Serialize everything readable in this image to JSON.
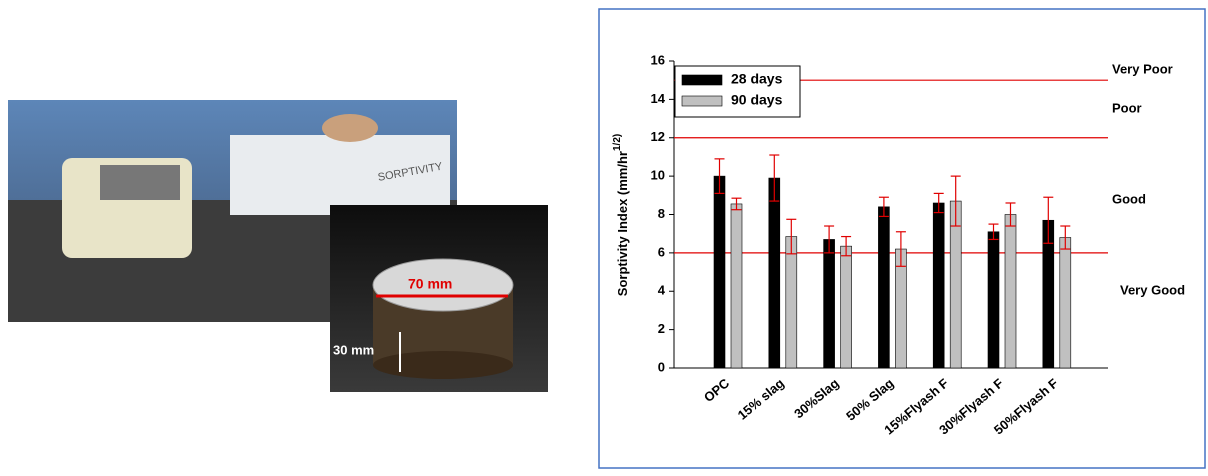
{
  "photo": {
    "labels": [
      "SORPTIVITY",
      "70 mm",
      "30 mm"
    ]
  },
  "chart_data": {
    "type": "bar",
    "ylabel": "Sorptivity Index (mm/hr",
    "ylabel_sup": "1/2)",
    "categories": [
      "OPC",
      "15% slag",
      "30%Slag",
      "50% Slag",
      "15%Flyash F",
      "30%Flyash F",
      "50%Flyash F"
    ],
    "series": [
      {
        "name": "28 days",
        "color": "#000000",
        "values": [
          10.0,
          9.9,
          6.7,
          8.4,
          8.6,
          7.1,
          7.7
        ],
        "errors": [
          0.9,
          1.2,
          0.7,
          0.5,
          0.5,
          0.4,
          1.2
        ]
      },
      {
        "name": "90 days",
        "color": "#c0c0c0",
        "values": [
          8.55,
          6.85,
          6.35,
          6.2,
          8.7,
          8.0,
          6.8
        ],
        "errors": [
          0.3,
          0.9,
          0.5,
          0.9,
          1.3,
          0.6,
          0.6
        ]
      }
    ],
    "error_color": "#e00000",
    "ylim": [
      0,
      16
    ],
    "yticks": [
      0,
      2,
      4,
      6,
      8,
      10,
      12,
      14,
      16
    ],
    "reference_lines": [
      6,
      12,
      15
    ],
    "reference_color": "#e00000",
    "zones": [
      "Very Poor",
      "Poor",
      "Good",
      "Very Good"
    ],
    "legend": "upper left"
  }
}
